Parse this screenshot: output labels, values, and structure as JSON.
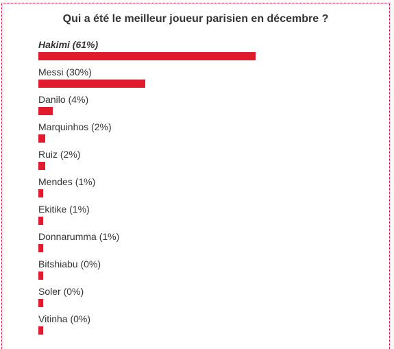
{
  "poll": {
    "question": "Qui a été le meilleur joueur parisien en décembre ?",
    "accent_color": "#e01b2d",
    "options": [
      {
        "label": "Hakimi (61%)",
        "percent": 61,
        "winner": true
      },
      {
        "label": "Messi (30%)",
        "percent": 30,
        "winner": false
      },
      {
        "label": "Danilo (4%)",
        "percent": 4,
        "winner": false
      },
      {
        "label": "Marquinhos (2%)",
        "percent": 2,
        "winner": false
      },
      {
        "label": "Ruiz (2%)",
        "percent": 2,
        "winner": false
      },
      {
        "label": "Mendes (1%)",
        "percent": 1,
        "winner": false
      },
      {
        "label": "Ekitike (1%)",
        "percent": 1,
        "winner": false
      },
      {
        "label": "Donnarumma (1%)",
        "percent": 1,
        "winner": false
      },
      {
        "label": "Bitshiabu (0%)",
        "percent": 0,
        "winner": false
      },
      {
        "label": "Soler (0%)",
        "percent": 0,
        "winner": false
      },
      {
        "label": "Vitinha (0%)",
        "percent": 0,
        "winner": false
      }
    ]
  }
}
